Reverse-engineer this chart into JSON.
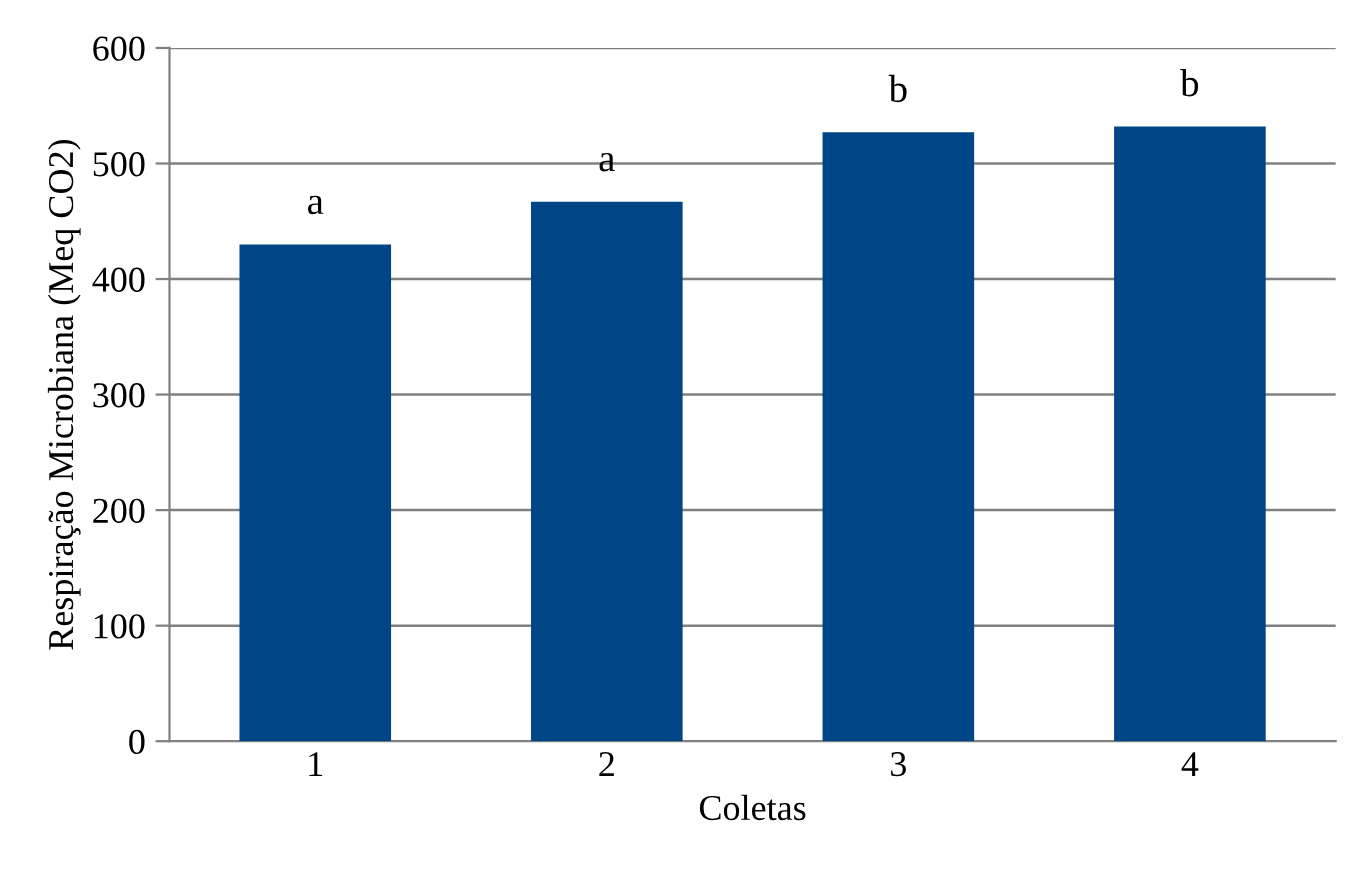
{
  "chart_data": {
    "type": "bar",
    "xlabel": "Coletas",
    "ylabel": "Respiração Microbiana (Meq CO2)",
    "categories": [
      "1",
      "2",
      "3",
      "4"
    ],
    "values": [
      430,
      467,
      527,
      532
    ],
    "color": "#004586",
    "ylim": [
      0,
      600
    ],
    "yticks": [
      0,
      100,
      200,
      300,
      400,
      500,
      600
    ],
    "grid": "y",
    "annotations": [
      {
        "text": "a",
        "x": "1",
        "y": 430
      },
      {
        "text": "a",
        "x": "2",
        "y": 467
      },
      {
        "text": "b",
        "x": "3",
        "y": 527
      },
      {
        "text": "b",
        "x": "4",
        "y": 532
      }
    ]
  }
}
